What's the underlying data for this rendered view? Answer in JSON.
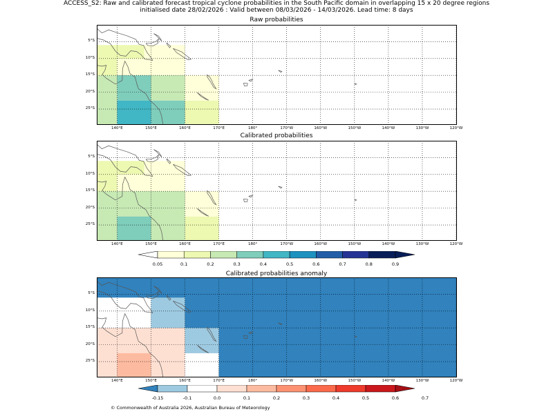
{
  "title_line1": "ACCESS_S2: Raw and calibrated forecast tropical cyclone probabilities in the South Pacific domain in overlapping 15 x 20 degree regions",
  "title_line2": "initialised date 28/02/2026 :  Valid between 08/03/2026 - 14/03/2026. Lead time: 8 days",
  "copyright": "© Commonwealth of Australia 2026, Australian Bureau of Meteorology",
  "map_extent": {
    "lon_min": 134,
    "lon_max": 240,
    "lat_min": -29.5,
    "lat_max": 0
  },
  "x_tick_labels": [
    {
      "lon": 140,
      "label": "140°E"
    },
    {
      "lon": 150,
      "label": "150°E"
    },
    {
      "lon": 160,
      "label": "160°E"
    },
    {
      "lon": 170,
      "label": "170°E"
    },
    {
      "lon": 180,
      "label": "180°"
    },
    {
      "lon": 190,
      "label": "170°W"
    },
    {
      "lon": 200,
      "label": "160°W"
    },
    {
      "lon": 210,
      "label": "150°W"
    },
    {
      "lon": 220,
      "label": "140°W"
    },
    {
      "lon": 230,
      "label": "130°W"
    },
    {
      "lon": 240,
      "label": "120°W"
    }
  ],
  "y_tick_labels": [
    {
      "lat": -5,
      "label": "5°S"
    },
    {
      "lat": -10,
      "label": "10°S"
    },
    {
      "lat": -15,
      "label": "15°S"
    },
    {
      "lat": -20,
      "label": "20°S"
    },
    {
      "lat": -25,
      "label": "25°S"
    }
  ],
  "colors": {
    "land_outline": "#555555",
    "prob_scale": [
      "#ffffd9",
      "#edf8b1",
      "#c7e9b4",
      "#7fcdbb",
      "#41b6c4",
      "#1d91c0",
      "#225ea8",
      "#253494",
      "#081d58"
    ],
    "anomaly_scale": [
      "#3182bd",
      "#9ecae1",
      "#ffffff",
      "#fee0d2",
      "#fcbba1",
      "#fc9272",
      "#fb6a4a",
      "#ef3b2c",
      "#cb181d",
      "#a50f15"
    ]
  },
  "panels": [
    {
      "name": "raw",
      "title": "Raw probabilities",
      "top": 36,
      "cells": [
        {
          "lon0": 134,
          "lon1": 140,
          "lat0": -1,
          "lat1": -6,
          "color": "#ffffff"
        },
        {
          "lon0": 134,
          "lon1": 160,
          "lat0": -6,
          "lat1": -15,
          "color": "#ffffd9"
        },
        {
          "lon0": 134,
          "lon1": 148,
          "lat0": -6,
          "lat1": -10,
          "color": "#edf8b1"
        },
        {
          "lon0": 134,
          "lon1": 140,
          "lat0": -10,
          "lat1": -15,
          "color": "#edf8b1"
        },
        {
          "lon0": 140,
          "lon1": 150,
          "lat0": -15,
          "lat1": -22.5,
          "color": "#7fcdbb"
        },
        {
          "lon0": 150,
          "lon1": 160,
          "lat0": -15,
          "lat1": -22.5,
          "color": "#c7e9b4"
        },
        {
          "lon0": 160,
          "lon1": 170,
          "lat0": -15,
          "lat1": -22.5,
          "color": "#ffffd9"
        },
        {
          "lon0": 134,
          "lon1": 140,
          "lat0": -15,
          "lat1": -29.5,
          "color": "#c7e9b4"
        },
        {
          "lon0": 140,
          "lon1": 150,
          "lat0": -22.5,
          "lat1": -29.5,
          "color": "#41b6c4"
        },
        {
          "lon0": 150,
          "lon1": 160,
          "lat0": -22.5,
          "lat1": -29.5,
          "color": "#7fcdbb"
        },
        {
          "lon0": 160,
          "lon1": 170,
          "lat0": -22.5,
          "lat1": -29.5,
          "color": "#edf8b1"
        }
      ]
    },
    {
      "name": "calibrated",
      "title": "Calibrated probabilities",
      "top": 204,
      "cells": [
        {
          "lon0": 134,
          "lon1": 160,
          "lat0": -6,
          "lat1": -15,
          "color": "#ffffd9"
        },
        {
          "lon0": 134,
          "lon1": 148,
          "lat0": -6,
          "lat1": -10,
          "color": "#edf8b1"
        },
        {
          "lon0": 134,
          "lon1": 140,
          "lat0": -10,
          "lat1": -15,
          "color": "#edf8b1"
        },
        {
          "lon0": 134,
          "lon1": 160,
          "lat0": -15,
          "lat1": -29.5,
          "color": "#c7e9b4"
        },
        {
          "lon0": 160,
          "lon1": 170,
          "lat0": -15,
          "lat1": -22.5,
          "color": "#ffffd9"
        },
        {
          "lon0": 160,
          "lon1": 170,
          "lat0": -22.5,
          "lat1": -29.5,
          "color": "#edf8b1"
        },
        {
          "lon0": 140,
          "lon1": 150,
          "lat0": -22.5,
          "lat1": -29.5,
          "color": "#7fcdbb"
        }
      ]
    },
    {
      "name": "anomaly",
      "title": "Calibrated probabilities anomaly",
      "top": 402,
      "cells": [
        {
          "lon0": 134,
          "lon1": 240,
          "lat0": 0,
          "lat1": -29.5,
          "color": "#3182bd"
        },
        {
          "lon0": 134,
          "lon1": 150,
          "lat0": -6,
          "lat1": -15,
          "color": "#ffffff"
        },
        {
          "lon0": 150,
          "lon1": 160,
          "lat0": -6,
          "lat1": -15,
          "color": "#9ecae1"
        },
        {
          "lon0": 134,
          "lon1": 160,
          "lat0": -15,
          "lat1": -29.5,
          "color": "#fee0d2"
        },
        {
          "lon0": 140,
          "lon1": 150,
          "lat0": -22.5,
          "lat1": -29.5,
          "color": "#fcbba1"
        },
        {
          "lon0": 160,
          "lon1": 170,
          "lat0": -15,
          "lat1": -22.5,
          "color": "#9ecae1"
        },
        {
          "lon0": 160,
          "lon1": 170,
          "lat0": -22.5,
          "lat1": -29.5,
          "color": "#ffffff"
        }
      ]
    }
  ],
  "colorbar_prob": {
    "top": 364,
    "labels": [
      "0.05",
      "0.1",
      "0.2",
      "0.3",
      "0.4",
      "0.5",
      "0.6",
      "0.7",
      "0.8",
      "0.9"
    ]
  },
  "colorbar_anom": {
    "top": 558,
    "labels": [
      "-0.15",
      "-0.1",
      "0.0",
      "0.1",
      "0.2",
      "0.3",
      "0.4",
      "0.5",
      "0.6",
      "0.7"
    ]
  }
}
